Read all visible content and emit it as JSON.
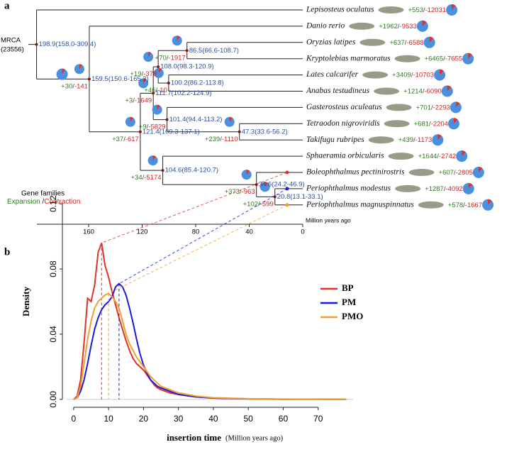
{
  "panel_labels": {
    "a": "a",
    "b": "b"
  },
  "tree": {
    "root_name": "MRCA",
    "root_count": "(23556)",
    "axis_label": "Million years ago",
    "ticks": [
      160,
      120,
      80,
      40,
      0
    ],
    "separator": "/",
    "legend": {
      "title": "Gene families",
      "expansion": "Expansion",
      "contraction": "Contraction"
    },
    "root": {
      "age": 198.9,
      "label": "198.9(158.0-309.4)",
      "children": [
        {
          "name": "Lepisosteus oculatus",
          "gain": "+553",
          "loss": "-12031"
        },
        {
          "age": 159.5,
          "label": "159.5(150.6-165.3)",
          "gain": "+30",
          "loss": "-141",
          "children": [
            {
              "name": "Danio rerio",
              "gain": "+1962",
              "loss": "-9533"
            },
            {
              "age": 121.4,
              "label": "121.4(109.3-137.1)",
              "gain": "+37",
              "loss": "-617",
              "children": [
                {
                  "age": 111.7,
                  "label": "111.7(102.2-124.9)",
                  "gain": "+3",
                  "loss": "-1649",
                  "children": [
                    {
                      "age": 108.0,
                      "label": "108.0(98.3-120.9)",
                      "gain": "+19",
                      "loss": "-378",
                      "children": [
                        {
                          "age": 86.5,
                          "label": "86.5(66.6-108.7)",
                          "gain": "+70",
                          "loss": "-1917",
                          "children": [
                            {
                              "name": "Oryzias latipes",
                              "gain": "+637",
                              "loss": "-6588"
                            },
                            {
                              "name": "Kryptolebias marmoratus",
                              "gain": "+6465",
                              "loss": "-7655"
                            }
                          ]
                        },
                        {
                          "age": 100.2,
                          "label": "100.2(86.2-113.8)",
                          "gain": "+46",
                          "loss": "-10",
                          "children": [
                            {
                              "name": "Lates calcarifer",
                              "gain": "+3409",
                              "loss": "-10703"
                            },
                            {
                              "name": "Anabas testudineus",
                              "gain": "+1214",
                              "loss": "-6090"
                            }
                          ]
                        }
                      ]
                    },
                    {
                      "age": 101.4,
                      "label": "101.4(94.4-113.2)",
                      "gain": "+9",
                      "loss": "-5829",
                      "children": [
                        {
                          "name": "Gasterosteus aculeatus",
                          "gain": "+701",
                          "loss": "-2293"
                        },
                        {
                          "age": 47.3,
                          "label": "47.3(33.6-56.2)",
                          "gain": "+239",
                          "loss": "-1110",
                          "children": [
                            {
                              "name": "Tetraodon nigroviridis",
                              "gain": "+681",
                              "loss": "-2204"
                            },
                            {
                              "name": "Takifugu rubripes",
                              "gain": "+439",
                              "loss": "-1173"
                            }
                          ]
                        }
                      ]
                    }
                  ]
                },
                {
                  "age": 104.6,
                  "label": "104.6(85.4-120.7)",
                  "gain": "+34",
                  "loss": "-5174",
                  "children": [
                    {
                      "name": "Sphaeramia orbicularis",
                      "gain": "+1644",
                      "loss": "-2742"
                    },
                    {
                      "age": 34.6,
                      "label": "34.6(24.2-46.9)",
                      "gain": "+373",
                      "loss": "-963",
                      "children": [
                        {
                          "name": "Boleophthalmus pectinirostris",
                          "gain": "+607",
                          "loss": "-2805"
                        },
                        {
                          "age": 20.8,
                          "label": "20.8(13.1-33.1)",
                          "gain": "+102",
                          "loss": "-599",
                          "children": [
                            {
                              "name": "Periophthalmus modestus",
                              "gain": "+1287",
                              "loss": "-4092"
                            },
                            {
                              "name": "Periophthalmus magnuspinnatus",
                              "gain": "+578",
                              "loss": "-1667"
                            }
                          ]
                        }
                      ]
                    }
                  ]
                }
              ]
            }
          ]
        }
      ]
    }
  },
  "chart_data": {
    "type": "line",
    "ylabel": "Density",
    "xlabel": "insertion time",
    "xlabel_unit": "(Million years ago)",
    "xlim": [
      -2,
      80
    ],
    "ylim": [
      -0.004,
      0.124
    ],
    "xticks": [
      0,
      10,
      20,
      30,
      40,
      50,
      60,
      70
    ],
    "yticks": [
      {
        "value": 0,
        "label": "0.00"
      },
      {
        "value": 0.04,
        "label": "0.04"
      },
      {
        "value": 0.08,
        "label": "0.08"
      },
      {
        "value": 0.12,
        "label": "0.12"
      }
    ],
    "x": [
      0,
      1,
      2,
      3,
      4,
      5,
      6,
      7,
      8,
      9,
      10,
      11,
      12,
      13,
      14,
      15,
      16,
      17,
      18,
      19,
      20,
      21,
      22,
      23,
      24,
      25,
      27.5,
      30,
      35,
      40,
      50,
      60,
      70,
      78
    ],
    "series": [
      {
        "name": "BP",
        "color": "#e0322a",
        "values": [
          0,
          0.002,
          0.012,
          0.035,
          0.062,
          0.06,
          0.07,
          0.09,
          0.096,
          0.082,
          0.075,
          0.066,
          0.058,
          0.05,
          0.043,
          0.036,
          0.03,
          0.025,
          0.022,
          0.02,
          0.018,
          0.015,
          0.012,
          0.009,
          0.007,
          0.006,
          0.004,
          0.003,
          0.0015,
          0.0008,
          0.0003,
          0.0001,
          0.0001,
          0
        ]
      },
      {
        "name": "PM",
        "color": "#1a1adb",
        "values": [
          0,
          0.001,
          0.005,
          0.012,
          0.022,
          0.033,
          0.043,
          0.05,
          0.055,
          0.058,
          0.06,
          0.063,
          0.069,
          0.071,
          0.069,
          0.064,
          0.056,
          0.047,
          0.037,
          0.028,
          0.021,
          0.016,
          0.012,
          0.01,
          0.008,
          0.007,
          0.005,
          0.003,
          0.0015,
          0.0008,
          0.0003,
          0.0001,
          0.0001,
          0
        ]
      },
      {
        "name": "PMO",
        "color": "#f0a030",
        "values": [
          0,
          0.001,
          0.008,
          0.022,
          0.037,
          0.048,
          0.056,
          0.06,
          0.062,
          0.064,
          0.065,
          0.063,
          0.06,
          0.056,
          0.048,
          0.04,
          0.034,
          0.03,
          0.026,
          0.023,
          0.02,
          0.017,
          0.014,
          0.012,
          0.01,
          0.008,
          0.006,
          0.004,
          0.002,
          0.001,
          0.0004,
          0.0002,
          0.0001,
          0
        ]
      }
    ]
  }
}
